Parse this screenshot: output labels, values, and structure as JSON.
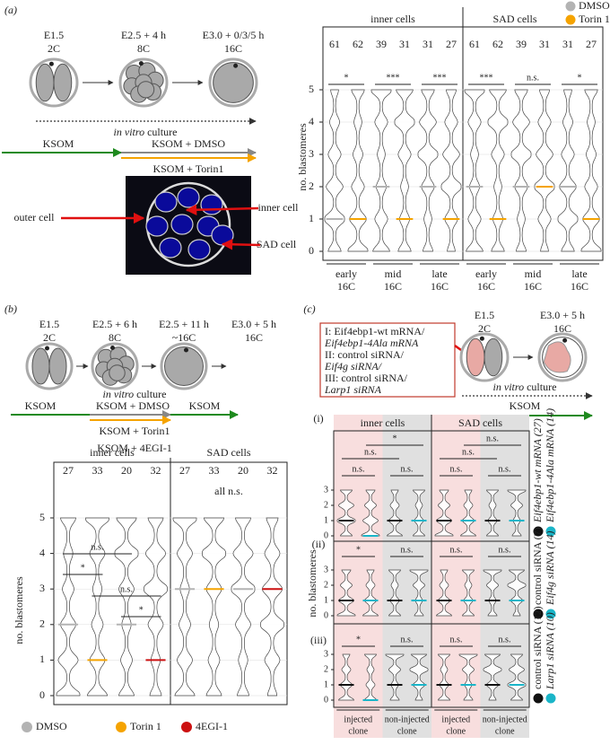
{
  "panel_a": {
    "label": "(a)",
    "stages": [
      [
        "E1.5",
        "2C"
      ],
      [
        "E2.5 + 4 h",
        "8C"
      ],
      [
        "E3.0 + 0/3/5 h",
        "16C"
      ]
    ],
    "culture": [
      "in vitro",
      "culture"
    ],
    "media": {
      "base": "KSOM",
      "control": "KSOM + DMSO",
      "treatment": "KSOM + Torin1"
    },
    "image_labels": {
      "outer": "outer cell",
      "inner": "inner cell",
      "sad": "SAD cell"
    },
    "chart": {
      "legend": [
        {
          "name": "DMSO",
          "color": "#b3b3b3"
        },
        {
          "name": "Torin 1",
          "color": "#f5a300"
        }
      ],
      "y_label": "no. blastomeres",
      "yticks": [
        0,
        1,
        2,
        3,
        4,
        5
      ],
      "groups": [
        {
          "name": "inner cells",
          "counts": [
            61,
            62,
            39,
            31,
            31,
            27
          ],
          "significance": [
            "*",
            "***",
            "***"
          ],
          "medians": [
            1,
            1,
            2,
            1,
            2,
            1
          ]
        },
        {
          "name": "SAD cells",
          "counts": [
            61,
            62,
            39,
            31,
            31,
            27
          ],
          "significance": [
            "***",
            "n.s.",
            "*"
          ],
          "medians": [
            2,
            1,
            2,
            2,
            2,
            1
          ]
        }
      ],
      "stages": [
        [
          "early",
          "16C"
        ],
        [
          "mid",
          "16C"
        ],
        [
          "late",
          "16C"
        ]
      ]
    }
  },
  "panel_b": {
    "label": "(b)",
    "stages": [
      [
        "E1.5",
        "2C"
      ],
      [
        "E2.5 + 6 h",
        "8C"
      ],
      [
        "E2.5 + 11 h",
        "~16C"
      ],
      [
        "E3.0 + 5 h",
        "16C"
      ]
    ],
    "culture": [
      "in vitro",
      "culture"
    ],
    "media": {
      "base": "KSOM",
      "control": "KSOM + DMSO",
      "after": "KSOM",
      "treatment_1": "KSOM + Torin1",
      "treatment_2": "KSOM + 4EGI-1"
    },
    "chart": {
      "legend": [
        {
          "name": "DMSO",
          "color": "#b3b3b3"
        },
        {
          "name": "Torin 1",
          "color": "#f5a300"
        },
        {
          "name": "4EGI-1",
          "color": "#cc1111"
        }
      ],
      "y_label": "no. blastomeres",
      "yticks": [
        0,
        1,
        2,
        3,
        4,
        5
      ],
      "groups": [
        {
          "name": "inner cells",
          "counts": [
            27,
            33,
            20,
            32
          ],
          "significance": [
            "n.s.",
            "*",
            "n.s.",
            "*"
          ],
          "medians": [
            2,
            1,
            2,
            1
          ]
        },
        {
          "name": "SAD cells",
          "counts": [
            27,
            33,
            20,
            32
          ],
          "significance": [
            "all n.s."
          ],
          "medians": [
            3,
            3,
            3,
            3
          ]
        }
      ]
    }
  },
  "panel_c": {
    "label": "(c)",
    "conditions": [
      "I:   Eif4ebp1-wt mRNA/",
      "      Eif4ebp1-4Ala mRNA",
      "II:  control siRNA/",
      "      Eif4g siRNA/",
      "III: control siRNA/",
      "      Larp1 siRNA"
    ],
    "stages": [
      [
        "E1.5",
        "2C"
      ],
      [
        "E3.0 + 5 h",
        "16C"
      ]
    ],
    "culture": [
      "in vitro",
      "culture"
    ],
    "medium": "KSOM",
    "chart": {
      "groups": [
        "inner cells",
        "SAD cells"
      ],
      "y_label": "no. blastomeres",
      "yticks": [
        0,
        1,
        2,
        3
      ],
      "colors": [
        "#111111",
        "#1ab5c8"
      ],
      "clone_labels": [
        [
          "injected",
          "clone"
        ],
        [
          "non-injected",
          "clone"
        ]
      ],
      "rows": [
        {
          "label": "(i)",
          "legend": [
            "Eif4ebp1-wt mRNA (27)",
            "Eif4ebp1-4Ala mRNA (14)"
          ],
          "significance": [
            [
              "n.s.",
              "n.s.",
              "n.s.",
              "*"
            ],
            [
              "n.s.",
              "n.s.",
              "n.s.",
              "n.s."
            ]
          ],
          "medians": [
            [
              1,
              0,
              1,
              1
            ],
            [
              1,
              1,
              1,
              1
            ]
          ]
        },
        {
          "label": "(ii)",
          "legend": [
            "control siRNA (7)",
            "Eif4g siRNA (14)"
          ],
          "significance": [
            [
              "*",
              "n.s."
            ],
            [
              "n.s.",
              "n.s."
            ]
          ],
          "medians": [
            [
              1,
              1,
              1,
              1
            ],
            [
              1,
              1,
              1,
              1
            ]
          ]
        },
        {
          "label": "(iii)",
          "legend": [
            "control siRNA (12)",
            "Larp1 siRNA (10)"
          ],
          "significance": [
            [
              "*",
              "n.s."
            ],
            [
              "n.s.",
              "n.s."
            ]
          ],
          "medians": [
            [
              1,
              0,
              1,
              1
            ],
            [
              1,
              1,
              1,
              1
            ]
          ]
        }
      ]
    }
  }
}
